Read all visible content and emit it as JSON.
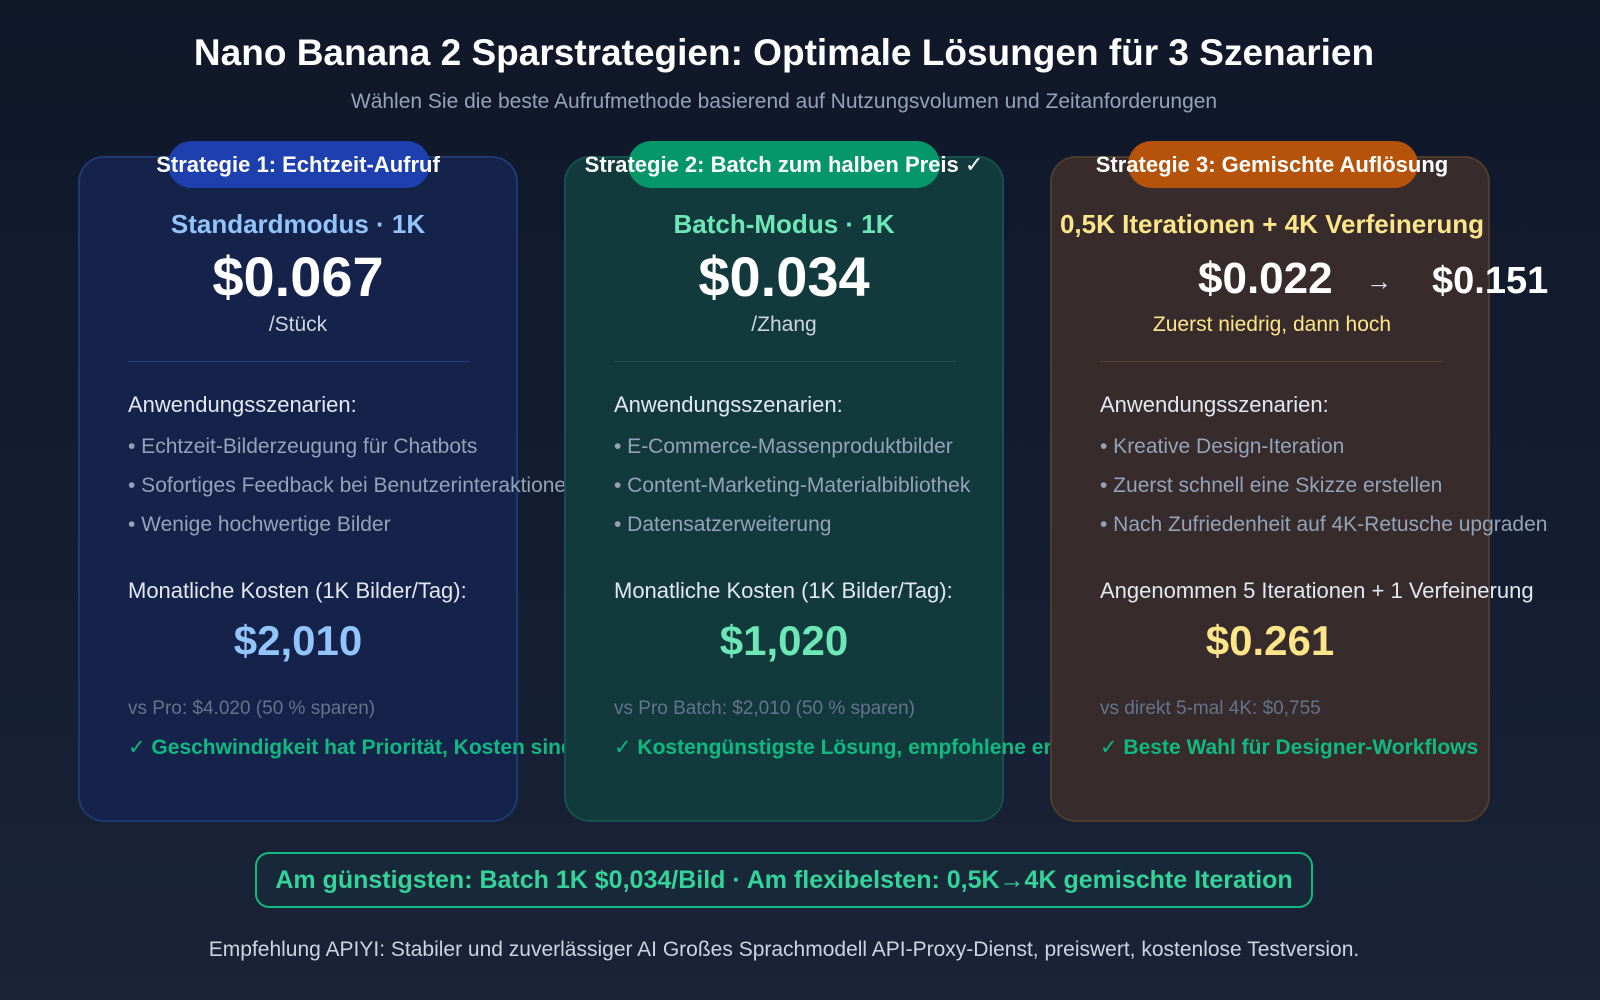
{
  "header": {
    "title": "Nano Banana 2 Sparstrategien: Optimale Lösungen für 3 Szenarien",
    "subtitle": "Wählen Sie die beste Aufrufmethode basierend auf Nutzungsvolumen und Zeitanforderungen"
  },
  "colors": {
    "blue": "#1e40af",
    "green": "#059669",
    "orange": "#b45309",
    "accent_green": "#10b981",
    "yellow": "#fde68a"
  },
  "cards": [
    {
      "badge": "Strategie 1: Echtzeit-Aufruf",
      "mode": "Standardmodus · 1K",
      "price": "$0.067",
      "unit": "/Stück",
      "scenarios_label": "Anwendungsszenarien:",
      "scenarios": [
        "• Echtzeit-Bilderzeugung für Chatbots",
        "• Sofortiges Feedback bei Benutzerinteraktionen",
        "• Wenige hochwertige Bilder"
      ],
      "cost_label": "Monatliche Kosten (1K Bilder/Tag):",
      "cost": "$2,010",
      "compare": "vs Pro: $4.020 (50 % sparen)",
      "verdict": "✓ Geschwindigkeit hat Priorität, Kosten sind zweitrangig"
    },
    {
      "badge": "Strategie 2: Batch zum halben Preis ✓",
      "mode": "Batch-Modus · 1K",
      "price": "$0.034",
      "unit": "/Zhang",
      "scenarios_label": "Anwendungsszenarien:",
      "scenarios": [
        "• E-Commerce-Massenproduktbilder",
        "• Content-Marketing-Materialbibliothek",
        "• Datensatzerweiterung"
      ],
      "cost_label": "Monatliche Kosten (1K Bilder/Tag):",
      "cost": "$1,020",
      "compare": "vs Pro Batch: $2,010 (50 % sparen)",
      "verdict": "✓ Kostengünstigste Lösung, empfohlene erste Wahl"
    },
    {
      "badge": "Strategie 3: Gemischte Auflösung",
      "mode": "0,5K Iterationen + 4K Verfeinerung",
      "price_low": "$0.022",
      "arrow": "→",
      "price_high": "$0.151",
      "unit": "Zuerst niedrig, dann hoch",
      "scenarios_label": "Anwendungsszenarien:",
      "scenarios": [
        "• Kreative Design-Iteration",
        "• Zuerst schnell eine Skizze erstellen",
        "• Nach Zufriedenheit auf 4K-Retusche upgraden"
      ],
      "cost_label": "Angenommen 5 Iterationen + 1 Verfeinerung",
      "cost": "$0.261",
      "compare": "vs direkt 5-mal 4K: $0,755",
      "verdict": "✓ Beste Wahl für Designer-Workflows"
    }
  ],
  "summary": "Am günstigsten: Batch 1K $0,034/Bild · Am flexibelsten: 0,5K→4K gemischte Iteration",
  "footer": "Empfehlung APIYI: Stabiler und zuverlässiger AI Großes Sprachmodell API-Proxy-Dienst, preiswert, kostenlose Testversion."
}
